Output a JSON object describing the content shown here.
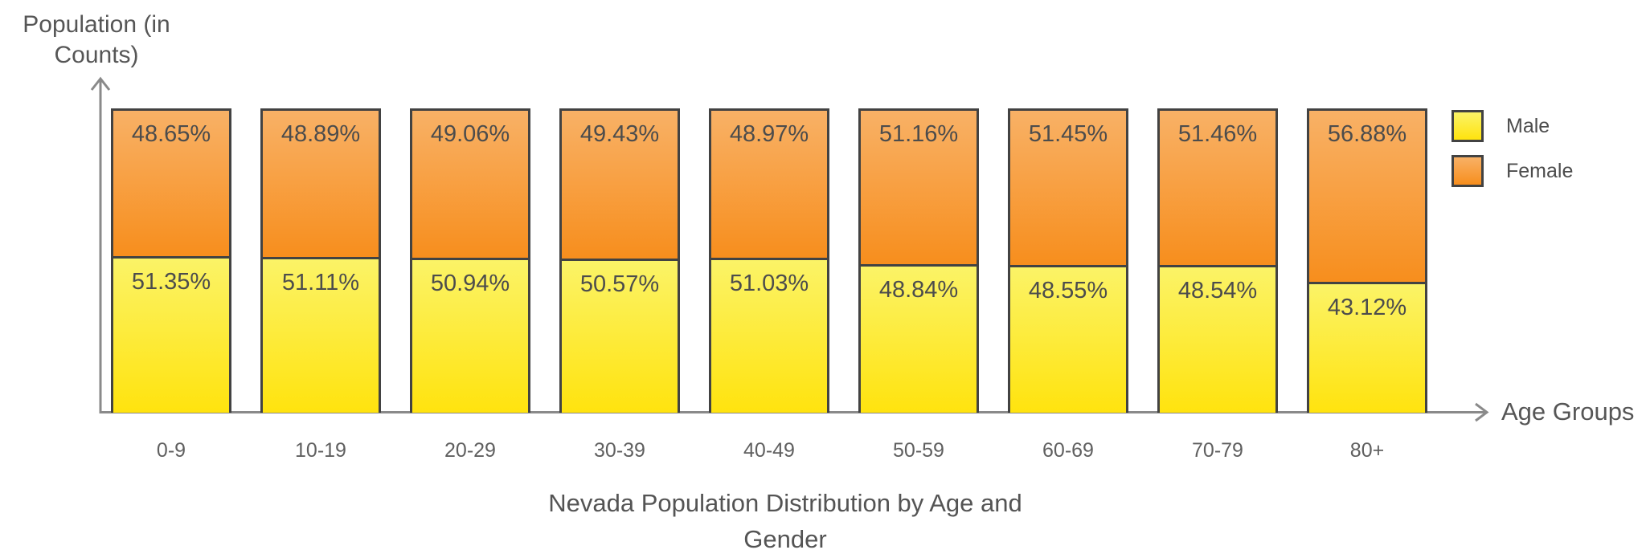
{
  "chart_data": {
    "type": "bar",
    "stacked": true,
    "unit": "percent",
    "value_suffix": "%",
    "title": "Nevada Population Distribution by Age and Gender",
    "ylabel": "Population (in Counts)",
    "xlabel": "Age Groups",
    "categories": [
      "0-9",
      "10-19",
      "20-29",
      "30-39",
      "40-49",
      "50-59",
      "60-69",
      "70-79",
      "80+"
    ],
    "series": [
      {
        "name": "Male",
        "values": [
          51.35,
          51.11,
          50.94,
          50.57,
          51.03,
          48.84,
          48.55,
          48.54,
          43.12
        ],
        "color_top": "#FBF367",
        "color_bottom": "#FFE30E"
      },
      {
        "name": "Female",
        "values": [
          48.65,
          48.89,
          49.06,
          49.43,
          48.97,
          51.16,
          51.45,
          51.46,
          56.88
        ],
        "color_top": "#F8B166",
        "color_bottom": "#F78E1D"
      }
    ],
    "stack_order_top_to_bottom": [
      "Female",
      "Male"
    ],
    "legend_position": "right",
    "grid": false,
    "ylim": [
      0,
      100
    ]
  },
  "colors": {
    "bar_border": "#424242",
    "axis": "#8A8A8A",
    "value_text": "#4C4C4C",
    "tick_text": "#5F5F5F",
    "title_text": "#545454",
    "background": "#FFFFFF"
  }
}
